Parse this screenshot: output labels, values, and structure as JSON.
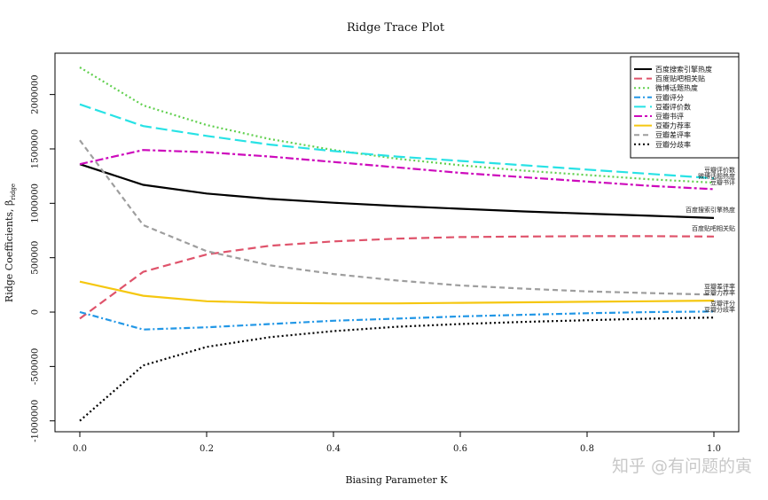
{
  "watermark": "知乎 @有问题的寅",
  "chart_data": {
    "type": "line",
    "title": "Ridge Trace Plot",
    "xlabel": "Biasing Parameter K",
    "ylabel": "Ridge Coefficients, β",
    "ylabel_subscript": "ridge",
    "xlim": [
      0.0,
      1.0
    ],
    "ylim": [
      -1100000,
      2380000
    ],
    "x_ticks": [
      0.0,
      0.2,
      0.4,
      0.6,
      0.8,
      1.0
    ],
    "x_tick_labels": [
      "0.0",
      "0.2",
      "0.4",
      "0.6",
      "0.8",
      "1.0"
    ],
    "y_ticks": [
      -1000000,
      -500000,
      0,
      500000,
      1000000,
      1500000,
      2000000
    ],
    "y_tick_labels": [
      "-1000000",
      "-500000",
      "0",
      "500000",
      "1000000",
      "1500000",
      "2000000"
    ],
    "grid": false,
    "legend_position": "top-right",
    "x": [
      0.0,
      0.1,
      0.2,
      0.3,
      0.4,
      0.5,
      0.6,
      0.7,
      0.8,
      0.9,
      1.0
    ],
    "series": [
      {
        "name": "百度搜索引擎热度",
        "color": "#000000",
        "dash": "solid",
        "values": [
          1360000,
          1170000,
          1090000,
          1040000,
          1005000,
          975000,
          950000,
          925000,
          905000,
          885000,
          865000
        ]
      },
      {
        "name": "百度贴吧相关贴",
        "color": "#df536b",
        "dash": "long",
        "values": [
          -60000,
          370000,
          530000,
          610000,
          650000,
          675000,
          690000,
          695000,
          698000,
          698000,
          695000
        ]
      },
      {
        "name": "微博话题热度",
        "color": "#61d04f",
        "dash": "dot",
        "values": [
          2250000,
          1900000,
          1720000,
          1590000,
          1490000,
          1410000,
          1350000,
          1300000,
          1260000,
          1220000,
          1190000
        ]
      },
      {
        "name": "豆瓣评分",
        "color": "#2297e6",
        "dash": "dashdot",
        "values": [
          0,
          -160000,
          -140000,
          -110000,
          -80000,
          -60000,
          -40000,
          -25000,
          -10000,
          0,
          5000
        ]
      },
      {
        "name": "豆瓣评价数",
        "color": "#28e2e5",
        "dash": "longdash",
        "values": [
          1910000,
          1710000,
          1620000,
          1540000,
          1480000,
          1430000,
          1390000,
          1350000,
          1310000,
          1270000,
          1230000
        ]
      },
      {
        "name": "豆瓣书评",
        "color": "#cd0bbc",
        "dash": "twodash",
        "values": [
          1360000,
          1490000,
          1470000,
          1430000,
          1380000,
          1330000,
          1280000,
          1240000,
          1200000,
          1160000,
          1130000
        ]
      },
      {
        "name": "豆瓣力荐率",
        "color": "#f5c710",
        "dash": "solid",
        "values": [
          280000,
          150000,
          100000,
          85000,
          80000,
          80000,
          85000,
          90000,
          95000,
          100000,
          105000
        ]
      },
      {
        "name": "豆瓣差评率",
        "color": "#9e9e9e",
        "dash": "dash",
        "values": [
          1580000,
          800000,
          560000,
          430000,
          350000,
          290000,
          245000,
          215000,
          190000,
          175000,
          160000
        ]
      },
      {
        "name": "豆瓣分歧率",
        "color": "#000000",
        "dash": "dot",
        "values": [
          -1000000,
          -490000,
          -320000,
          -230000,
          -175000,
          -135000,
          -110000,
          -90000,
          -75000,
          -60000,
          -50000
        ]
      }
    ]
  }
}
